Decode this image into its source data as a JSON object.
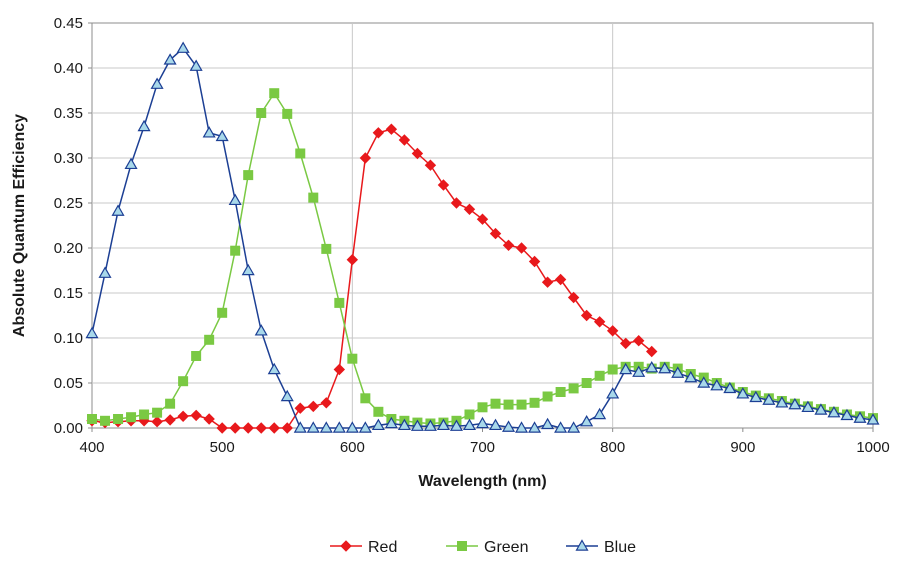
{
  "chart_data": {
    "type": "line",
    "title": "",
    "xlabel": "Wavelength (nm)",
    "ylabel": "Absolute Quantum Efficiency",
    "xlim": [
      400,
      1000
    ],
    "ylim": [
      0,
      0.45
    ],
    "xticks": [
      400,
      500,
      600,
      700,
      800,
      900,
      1000
    ],
    "xtick_labels": [
      "400",
      "500",
      "600",
      "700",
      "800",
      "900",
      "1000"
    ],
    "yticks": [
      0,
      0.05,
      0.1,
      0.15,
      0.2,
      0.25,
      0.3,
      0.35,
      0.4,
      0.45
    ],
    "ytick_labels": [
      "0.00",
      "0.05",
      "0.10",
      "0.15",
      "0.20",
      "0.25",
      "0.30",
      "0.35",
      "0.40",
      "0.45"
    ],
    "grid": {
      "horizontal": true,
      "vertical_at": [
        600,
        800
      ]
    },
    "legend": {
      "placement": "bottom-center"
    },
    "series": [
      {
        "name": "Red",
        "color": "#e8191c",
        "marker": "diamond",
        "x": [
          400,
          410,
          420,
          430,
          440,
          450,
          460,
          470,
          480,
          490,
          500,
          510,
          520,
          530,
          540,
          550,
          560,
          570,
          580,
          590,
          600,
          610,
          620,
          630,
          640,
          650,
          660,
          670,
          680,
          690,
          700,
          710,
          720,
          730,
          740,
          750,
          760,
          770,
          780,
          790,
          800,
          810,
          820,
          830
        ],
        "y": [
          0.008,
          0.006,
          0.007,
          0.008,
          0.008,
          0.007,
          0.009,
          0.013,
          0.014,
          0.01,
          0.0,
          0.0,
          0.0,
          0.0,
          0.0,
          0.0,
          0.022,
          0.024,
          0.028,
          0.065,
          0.187,
          0.3,
          0.328,
          0.332,
          0.32,
          0.305,
          0.292,
          0.27,
          0.25,
          0.243,
          0.232,
          0.216,
          0.203,
          0.2,
          0.185,
          0.162,
          0.165,
          0.145,
          0.125,
          0.118,
          0.108,
          0.094,
          0.097,
          0.085
        ]
      },
      {
        "name": "Green",
        "color": "#7ac943",
        "marker": "square",
        "x": [
          400,
          410,
          420,
          430,
          440,
          450,
          460,
          470,
          480,
          490,
          500,
          510,
          520,
          530,
          540,
          550,
          560,
          570,
          580,
          590,
          600,
          610,
          620,
          630,
          640,
          650,
          660,
          670,
          680,
          690,
          700,
          710,
          720,
          730,
          740,
          750,
          760,
          770,
          780,
          790,
          800,
          810,
          820,
          830,
          840,
          850,
          860,
          870,
          880,
          890,
          900,
          910,
          920,
          930,
          940,
          950,
          960,
          970,
          980,
          990,
          1000
        ],
        "y": [
          0.01,
          0.008,
          0.01,
          0.012,
          0.015,
          0.017,
          0.027,
          0.052,
          0.08,
          0.098,
          0.128,
          0.197,
          0.281,
          0.35,
          0.372,
          0.349,
          0.305,
          0.256,
          0.199,
          0.139,
          0.077,
          0.033,
          0.018,
          0.01,
          0.008,
          0.006,
          0.005,
          0.006,
          0.008,
          0.015,
          0.023,
          0.027,
          0.026,
          0.026,
          0.028,
          0.035,
          0.04,
          0.044,
          0.05,
          0.058,
          0.065,
          0.068,
          0.068,
          0.066,
          0.068,
          0.066,
          0.06,
          0.056,
          0.05,
          0.045,
          0.04,
          0.036,
          0.033,
          0.03,
          0.027,
          0.024,
          0.021,
          0.018,
          0.015,
          0.013,
          0.011
        ]
      },
      {
        "name": "Blue",
        "color": "#1c3f94",
        "marker": "triangle",
        "marker_fill": "#a8d8ea",
        "x": [
          400,
          410,
          420,
          430,
          440,
          450,
          460,
          470,
          480,
          490,
          500,
          510,
          520,
          530,
          540,
          550,
          560,
          570,
          580,
          590,
          600,
          610,
          620,
          630,
          640,
          650,
          660,
          670,
          680,
          690,
          700,
          710,
          720,
          730,
          740,
          750,
          760,
          770,
          780,
          790,
          800,
          810,
          820,
          830,
          840,
          850,
          860,
          870,
          880,
          890,
          900,
          910,
          920,
          930,
          940,
          950,
          960,
          970,
          980,
          990,
          1000
        ],
        "y": [
          0.105,
          0.172,
          0.241,
          0.293,
          0.335,
          0.382,
          0.409,
          0.422,
          0.402,
          0.328,
          0.324,
          0.253,
          0.175,
          0.108,
          0.065,
          0.035,
          0.0,
          0.0,
          0.0,
          0.0,
          0.0,
          0.0,
          0.003,
          0.005,
          0.003,
          0.002,
          0.002,
          0.003,
          0.002,
          0.003,
          0.005,
          0.003,
          0.001,
          0.0,
          0.0,
          0.004,
          0.0,
          0.0,
          0.007,
          0.015,
          0.038,
          0.065,
          0.062,
          0.067,
          0.066,
          0.061,
          0.056,
          0.05,
          0.047,
          0.044,
          0.038,
          0.034,
          0.031,
          0.028,
          0.026,
          0.023,
          0.02,
          0.017,
          0.014,
          0.011,
          0.009
        ]
      }
    ]
  }
}
